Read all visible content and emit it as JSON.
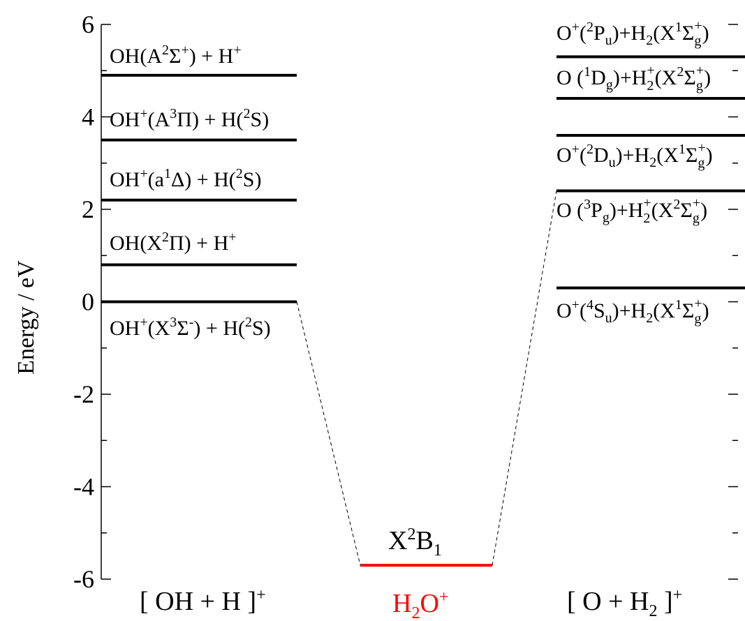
{
  "chart_data": {
    "type": "energy-level-diagram",
    "ylabel": "Energy / eV",
    "ylim": [
      -6,
      6
    ],
    "y_ticks": [
      "6",
      "4",
      "2",
      "0",
      "-2",
      "-4",
      "-6"
    ],
    "y_tick_values": [
      6,
      4,
      2,
      0,
      -2,
      -4,
      -6
    ],
    "groups": {
      "left": "[ OH + H ]",
      "left_sup": "+",
      "center_main": "H",
      "center_sub": "2",
      "center_main2": "O",
      "center_sup": "+",
      "right_pre": "[ O + H",
      "right_sub": "2",
      "right_post": " ]",
      "right_sup": "+"
    },
    "center_state": {
      "energy": -5.7,
      "label_main": "X",
      "label_sup": "2",
      "label_b": "B",
      "label_sub": "1",
      "color": "#ff0000"
    },
    "left_levels": [
      {
        "energy": 4.9
      },
      {
        "energy": 3.5
      },
      {
        "energy": 2.2
      },
      {
        "energy": 0.8
      },
      {
        "energy": 0.0
      }
    ],
    "right_levels": [
      {
        "energy": 5.3
      },
      {
        "energy": 4.4
      },
      {
        "energy": 3.6
      },
      {
        "energy": 2.4
      },
      {
        "energy": 0.3
      }
    ],
    "left_labels": [
      {
        "a": "OH(A",
        "b": "2",
        "c": "Σ",
        "d": "+",
        "e": ") + H",
        "f": "+"
      },
      {
        "a": "OH",
        "b": "+",
        "c": "(A",
        "d": "3",
        "e": "Π) + H(",
        "f": "2",
        "g": "S)"
      },
      {
        "a": "OH",
        "b": "+",
        "c": "(a",
        "d": "1",
        "e": "Δ) + H(",
        "f": "2",
        "g": "S)"
      },
      {
        "a": "OH(X",
        "b": "2",
        "c": "Π) + H",
        "d": "+"
      },
      {
        "a": "OH",
        "b": "+",
        "c": "(X",
        "d": "3",
        "e": "Σ",
        "f": "-",
        "g": ") + H(",
        "h": "2",
        "i": "S)"
      }
    ],
    "right_labels": [
      {
        "a": "O",
        "b": "+",
        "c": "(",
        "d": "2",
        "e": "P",
        "f": "u",
        "g": ")+H",
        "h": "2",
        "i": "(X",
        "j": "1",
        "k": "Σ",
        "l": "g",
        "m": "+",
        "n": ")"
      },
      {
        "a": "O (",
        "b": "1",
        "c": "D",
        "d": "g",
        "e": ")+H",
        "f": "2",
        "g": "+",
        "h": "(X",
        "i": "2",
        "j": "Σ",
        "k": "g",
        "l": "+",
        "m": ")"
      },
      {
        "a": "O",
        "b": "+",
        "c": "(",
        "d": "2",
        "e": "D",
        "f": "u",
        "g": ")+H",
        "h": "2",
        "i": "(X",
        "j": "1",
        "k": "Σ",
        "l": "g",
        "m": "+",
        "n": ")"
      },
      {
        "a": "O (",
        "b": "3",
        "c": "P",
        "d": "g",
        "e": ")+H",
        "f": "2",
        "g": "+",
        "h": "(X",
        "i": "2",
        "j": "Σ",
        "k": "g",
        "l": "+",
        "m": ")"
      },
      {
        "a": "O",
        "b": "+",
        "c": "(",
        "d": "4",
        "e": "S",
        "f": "u",
        "g": ")+H",
        "h": "2",
        "i": "(X",
        "j": "1",
        "k": "Σ",
        "l": "g",
        "m": "+",
        "n": ")"
      }
    ]
  }
}
